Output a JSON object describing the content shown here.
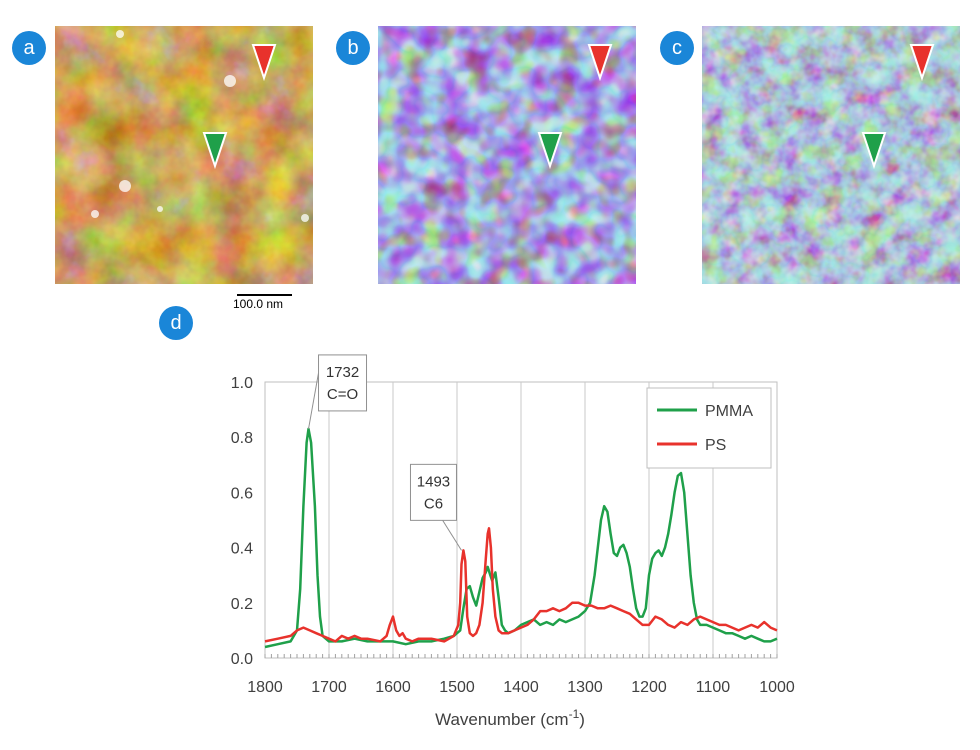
{
  "panels": [
    {
      "label": "a",
      "colormap": "afm-height"
    },
    {
      "label": "b",
      "colormap": "ir-map"
    },
    {
      "label": "c",
      "colormap": "ir-map"
    }
  ],
  "scale_bar": {
    "label": "100.0 nm"
  },
  "chart_label": "d",
  "markers": {
    "red": "#e8322c",
    "green": "#1fa04a"
  },
  "chart_data": {
    "type": "line",
    "xlabel_main": "Wavenumber (cm",
    "xlabel_sup": "-1",
    "xlabel_tail": ")",
    "ylabel": "",
    "xlim": [
      1800,
      1000
    ],
    "x_reversed": true,
    "ylim": [
      0,
      1.0
    ],
    "x_ticks": [
      1800,
      1700,
      1600,
      1500,
      1400,
      1300,
      1200,
      1100,
      1000
    ],
    "y_ticks": [
      "0.0",
      "0.2",
      "0.4",
      "0.6",
      "0.8",
      "1.0"
    ],
    "legend_position": "top-right",
    "grid": "vertical",
    "series": [
      {
        "name": "PMMA",
        "color": "#1fa04a",
        "x": [
          1800,
          1780,
          1760,
          1750,
          1745,
          1740,
          1735,
          1732,
          1728,
          1722,
          1718,
          1714,
          1710,
          1700,
          1680,
          1660,
          1640,
          1620,
          1600,
          1580,
          1560,
          1540,
          1520,
          1505,
          1495,
          1490,
          1485,
          1480,
          1475,
          1470,
          1465,
          1460,
          1455,
          1452,
          1448,
          1445,
          1440,
          1435,
          1430,
          1425,
          1420,
          1410,
          1400,
          1390,
          1380,
          1370,
          1360,
          1350,
          1340,
          1330,
          1320,
          1310,
          1300,
          1292,
          1285,
          1280,
          1275,
          1270,
          1265,
          1260,
          1255,
          1250,
          1245,
          1240,
          1235,
          1230,
          1225,
          1220,
          1215,
          1210,
          1205,
          1200,
          1195,
          1190,
          1185,
          1180,
          1175,
          1170,
          1165,
          1160,
          1155,
          1150,
          1145,
          1140,
          1135,
          1130,
          1125,
          1120,
          1110,
          1100,
          1090,
          1080,
          1070,
          1060,
          1050,
          1040,
          1030,
          1020,
          1010,
          1000
        ],
        "y": [
          0.04,
          0.05,
          0.06,
          0.1,
          0.25,
          0.55,
          0.78,
          0.83,
          0.78,
          0.55,
          0.3,
          0.15,
          0.08,
          0.06,
          0.06,
          0.07,
          0.06,
          0.06,
          0.06,
          0.05,
          0.06,
          0.06,
          0.07,
          0.08,
          0.1,
          0.18,
          0.25,
          0.26,
          0.22,
          0.19,
          0.24,
          0.29,
          0.31,
          0.33,
          0.3,
          0.28,
          0.31,
          0.22,
          0.12,
          0.1,
          0.09,
          0.1,
          0.12,
          0.13,
          0.14,
          0.12,
          0.13,
          0.12,
          0.14,
          0.13,
          0.14,
          0.15,
          0.17,
          0.2,
          0.3,
          0.4,
          0.5,
          0.55,
          0.53,
          0.45,
          0.38,
          0.37,
          0.4,
          0.41,
          0.38,
          0.33,
          0.25,
          0.18,
          0.15,
          0.15,
          0.18,
          0.3,
          0.36,
          0.38,
          0.39,
          0.37,
          0.4,
          0.45,
          0.52,
          0.6,
          0.66,
          0.67,
          0.6,
          0.45,
          0.3,
          0.2,
          0.14,
          0.12,
          0.12,
          0.11,
          0.1,
          0.09,
          0.09,
          0.08,
          0.07,
          0.08,
          0.07,
          0.06,
          0.06,
          0.07
        ]
      },
      {
        "name": "PS",
        "color": "#e8322c",
        "x": [
          1800,
          1780,
          1760,
          1750,
          1740,
          1730,
          1720,
          1710,
          1700,
          1690,
          1680,
          1670,
          1660,
          1650,
          1640,
          1620,
          1610,
          1605,
          1600,
          1595,
          1590,
          1585,
          1580,
          1570,
          1560,
          1540,
          1520,
          1505,
          1498,
          1495,
          1493,
          1490,
          1487,
          1484,
          1480,
          1475,
          1470,
          1465,
          1460,
          1455,
          1452,
          1450,
          1447,
          1444,
          1440,
          1435,
          1430,
          1420,
          1410,
          1400,
          1390,
          1380,
          1370,
          1360,
          1350,
          1340,
          1330,
          1320,
          1310,
          1300,
          1290,
          1280,
          1270,
          1260,
          1250,
          1240,
          1230,
          1220,
          1210,
          1200,
          1190,
          1180,
          1170,
          1160,
          1150,
          1140,
          1130,
          1120,
          1110,
          1100,
          1090,
          1080,
          1070,
          1060,
          1050,
          1040,
          1030,
          1020,
          1010,
          1000
        ],
        "y": [
          0.06,
          0.07,
          0.08,
          0.1,
          0.11,
          0.1,
          0.09,
          0.08,
          0.07,
          0.06,
          0.08,
          0.07,
          0.08,
          0.07,
          0.07,
          0.06,
          0.08,
          0.12,
          0.15,
          0.1,
          0.08,
          0.09,
          0.07,
          0.06,
          0.07,
          0.07,
          0.06,
          0.08,
          0.12,
          0.2,
          0.34,
          0.39,
          0.35,
          0.15,
          0.09,
          0.08,
          0.09,
          0.12,
          0.2,
          0.36,
          0.45,
          0.47,
          0.4,
          0.25,
          0.15,
          0.1,
          0.09,
          0.09,
          0.1,
          0.11,
          0.12,
          0.14,
          0.17,
          0.17,
          0.18,
          0.17,
          0.18,
          0.2,
          0.2,
          0.19,
          0.19,
          0.18,
          0.18,
          0.19,
          0.18,
          0.17,
          0.16,
          0.14,
          0.12,
          0.12,
          0.15,
          0.14,
          0.12,
          0.11,
          0.13,
          0.12,
          0.14,
          0.15,
          0.14,
          0.13,
          0.12,
          0.12,
          0.11,
          0.1,
          0.11,
          0.12,
          0.11,
          0.13,
          0.11,
          0.1
        ]
      }
    ],
    "annotations": [
      {
        "text_line1": "1732",
        "text_line2": "C=O",
        "x": 1732,
        "y": 0.83
      },
      {
        "text_line1": "1493",
        "text_line2": "C6",
        "x": 1493,
        "y": 0.39
      }
    ]
  }
}
